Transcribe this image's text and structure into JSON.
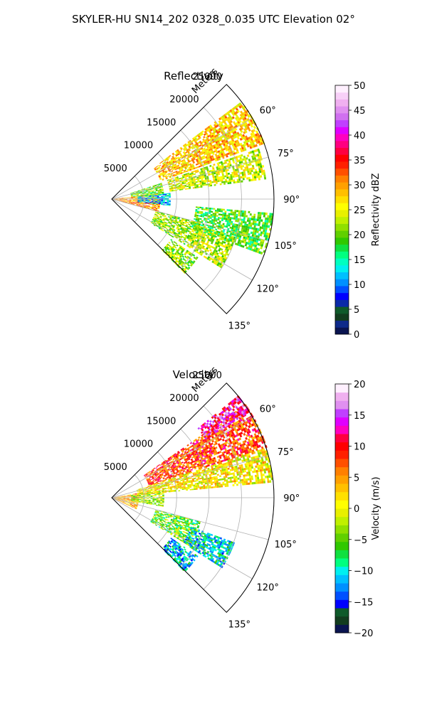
{
  "figure": {
    "suptitle": "SKYLER-HU  SN14_202  0328_0.035 UTC Elevation 02°"
  },
  "chart_data": [
    {
      "type": "heatmap",
      "subtype": "polar-sector",
      "title": "Reflectivity",
      "radial_label": "Meters",
      "radial_range": [
        0,
        25000
      ],
      "radial_ticks": [
        5000,
        10000,
        15000,
        20000,
        25000
      ],
      "radial_tick_labels": [
        "5000",
        "10000",
        "15000",
        "20000",
        "25000"
      ],
      "azimuth_range_deg": [
        45,
        135
      ],
      "azimuth_ticks": [
        60,
        75,
        90,
        105,
        120,
        135
      ],
      "azimuth_tick_labels": [
        "60°",
        "75°",
        "90°",
        "105°",
        "120°",
        "135°"
      ],
      "grid": true,
      "colorbar": {
        "label": "Reflectivity dBZ",
        "range": [
          0,
          50
        ],
        "ticks": [
          0,
          5,
          10,
          15,
          20,
          25,
          30,
          35,
          40,
          45,
          50
        ],
        "tick_labels": [
          "0",
          "5",
          "10",
          "15",
          "20",
          "25",
          "30",
          "35",
          "40",
          "45",
          "50"
        ],
        "colors": [
          "#0a1450",
          "#0e2a8a",
          "#123c1e",
          "#0f5a2a",
          "#0a2aa8",
          "#0000ff",
          "#0050ff",
          "#0090ff",
          "#00c0ff",
          "#00f0f0",
          "#00ffc0",
          "#00ff80",
          "#10e040",
          "#30c800",
          "#60d000",
          "#90e000",
          "#c0f000",
          "#e8f000",
          "#ffff00",
          "#ffe000",
          "#ffc000",
          "#ffa000",
          "#ff8000",
          "#ff5000",
          "#ff2000",
          "#ff0000",
          "#ff0040",
          "#ff0080",
          "#ff00c0",
          "#e000ff",
          "#c040ff",
          "#d070f0",
          "#e090f0",
          "#f0b0f0",
          "#f8d0f8",
          "#fff0ff"
        ],
        "colors_domain": [
          0,
          50
        ]
      },
      "echo_regions": [
        {
          "r_range": [
            0,
            7500
          ],
          "az_range": [
            83,
            105
          ],
          "mean": 30
        },
        {
          "r_range": [
            4000,
            9000
          ],
          "az_range": [
            84,
            96
          ],
          "mean": 12
        },
        {
          "r_range": [
            8000,
            25000
          ],
          "az_range": [
            53,
            70
          ],
          "mean": 28
        },
        {
          "r_range": [
            9000,
            24000
          ],
          "az_range": [
            71,
            82
          ],
          "mean": 24
        },
        {
          "r_range": [
            3000,
            8000
          ],
          "az_range": [
            72,
            84
          ],
          "mean": 20
        },
        {
          "r_range": [
            7000,
            14000
          ],
          "az_range": [
            105,
            122
          ],
          "mean": 22
        },
        {
          "r_range": [
            14000,
            20000
          ],
          "az_range": [
            107,
            122
          ],
          "mean": 23
        },
        {
          "r_range": [
            11000,
            16000
          ],
          "az_range": [
            124,
            135
          ],
          "mean": 22
        },
        {
          "r_range": [
            13000,
            25000
          ],
          "az_range": [
            95,
            110
          ],
          "mean": 19
        }
      ]
    },
    {
      "type": "heatmap",
      "subtype": "polar-sector",
      "title": "Velocity",
      "radial_label": "Meters",
      "radial_range": [
        0,
        25000
      ],
      "radial_ticks": [
        5000,
        10000,
        15000,
        20000,
        25000
      ],
      "radial_tick_labels": [
        "5000",
        "10000",
        "15000",
        "20000",
        "25000"
      ],
      "azimuth_range_deg": [
        45,
        135
      ],
      "azimuth_ticks": [
        60,
        75,
        90,
        105,
        120,
        135
      ],
      "azimuth_tick_labels": [
        "60°",
        "75°",
        "90°",
        "105°",
        "120°",
        "135°"
      ],
      "grid": true,
      "colorbar": {
        "label": "Velocity (m/s)",
        "range": [
          -20,
          20
        ],
        "ticks": [
          -20,
          -15,
          -10,
          -5,
          0,
          5,
          10,
          15,
          20
        ],
        "tick_labels": [
          "−20",
          "−15",
          "−10",
          "−5",
          "0",
          "5",
          "10",
          "15",
          "20"
        ],
        "colors": [
          "#0a1450",
          "#123c1e",
          "#0f5a2a",
          "#0000ff",
          "#0050ff",
          "#0090ff",
          "#00c0ff",
          "#00f0f0",
          "#00ff80",
          "#10e040",
          "#30c800",
          "#60d000",
          "#90e000",
          "#c0f000",
          "#e8f000",
          "#ffff00",
          "#ffe000",
          "#ffc000",
          "#ffa000",
          "#ff8000",
          "#ff5000",
          "#ff2000",
          "#ff0000",
          "#ff0040",
          "#ff00c0",
          "#e000ff",
          "#c040ff",
          "#e090f0",
          "#f0b0f0",
          "#fff0ff"
        ],
        "colors_domain": [
          -20,
          20
        ]
      },
      "echo_regions": [
        {
          "r_range": [
            0,
            4000
          ],
          "az_range": [
            80,
            115
          ],
          "mean": 4
        },
        {
          "r_range": [
            3000,
            8000
          ],
          "az_range": [
            82,
            100
          ],
          "mean": -3
        },
        {
          "r_range": [
            6000,
            25000
          ],
          "az_range": [
            55,
            72
          ],
          "mean": 8
        },
        {
          "r_range": [
            17000,
            25000
          ],
          "az_range": [
            51,
            58
          ],
          "mean": 13
        },
        {
          "r_range": [
            4000,
            25000
          ],
          "az_range": [
            72,
            84
          ],
          "mean": 1
        },
        {
          "r_range": [
            7000,
            14000
          ],
          "az_range": [
            105,
            122
          ],
          "mean": -5
        },
        {
          "r_range": [
            13000,
            20000
          ],
          "az_range": [
            110,
            122
          ],
          "mean": -10
        },
        {
          "r_range": [
            11000,
            16000
          ],
          "az_range": [
            124,
            135
          ],
          "mean": -11
        }
      ]
    }
  ]
}
